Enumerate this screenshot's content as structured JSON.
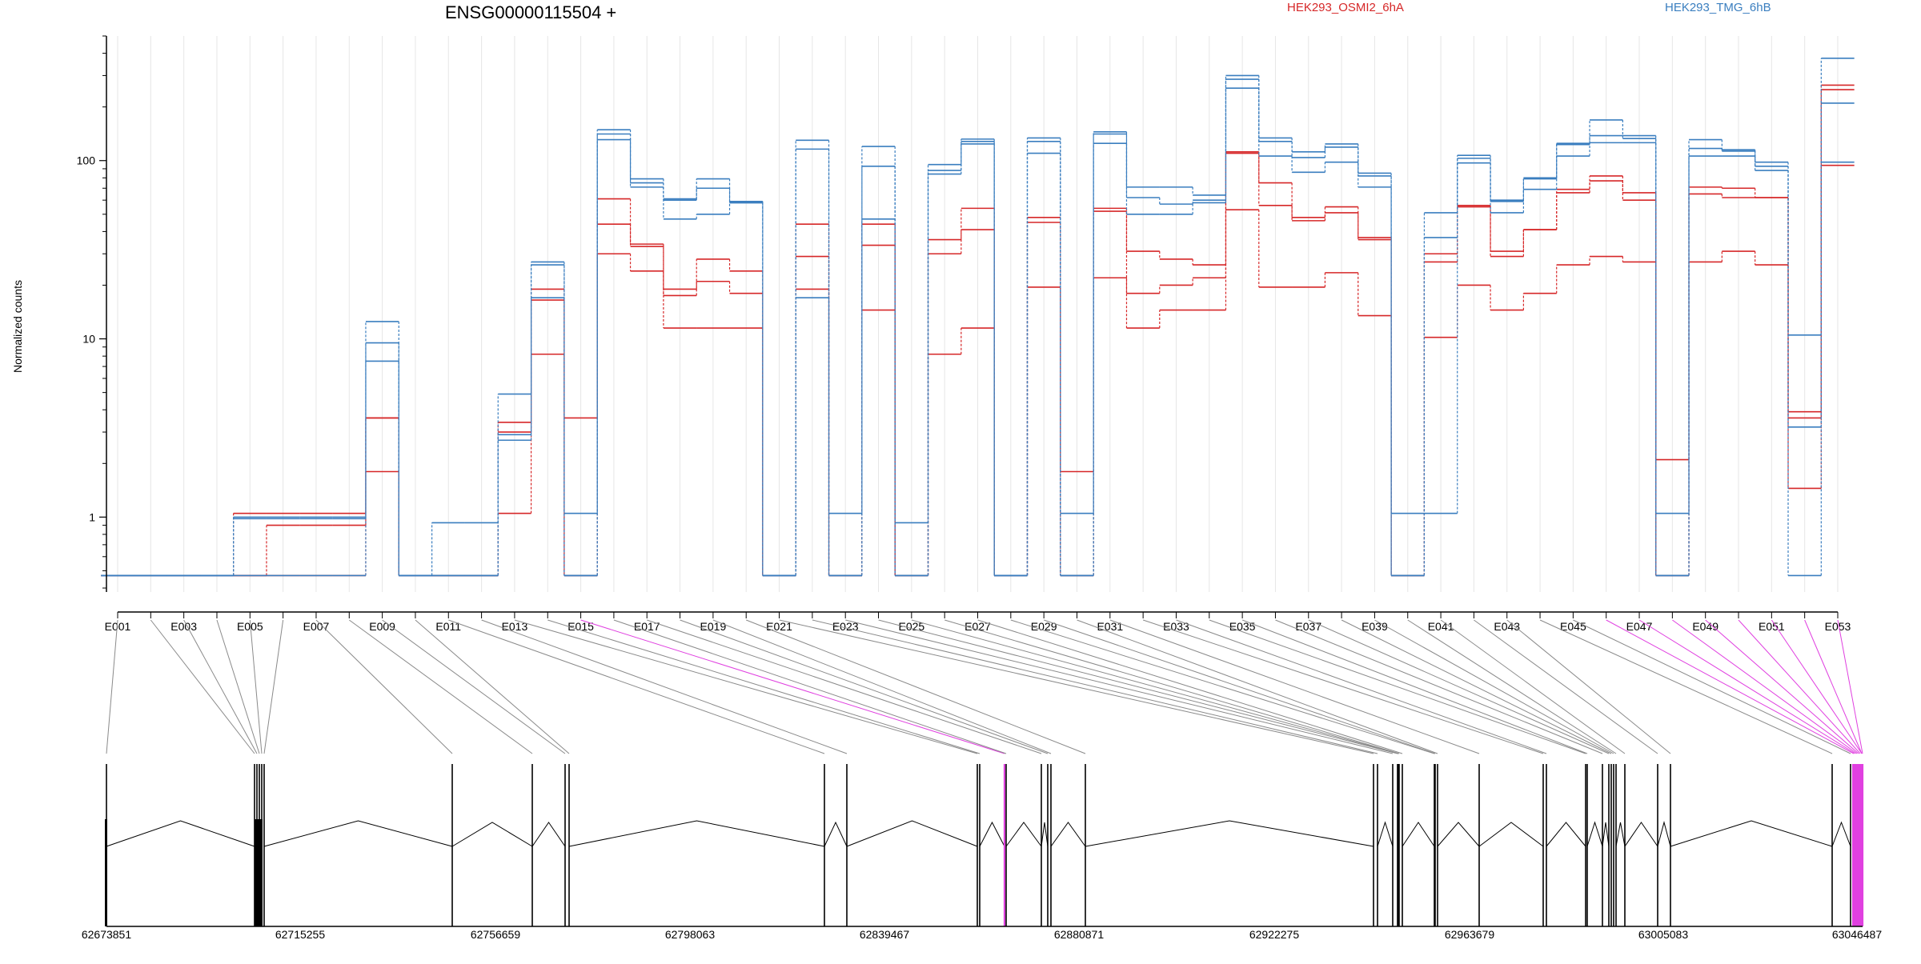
{
  "chart_data": {
    "type": "line",
    "title": "ENSG00000115504 +",
    "ylabel": "Normalized counts",
    "yscale": "log",
    "ylim": [
      0.38,
      500
    ],
    "yticks": [
      1,
      10,
      100
    ],
    "ytick_labels": [
      "1",
      "10",
      "100"
    ],
    "grid": "vertical",
    "legend_placement": "top-right",
    "legend": [
      {
        "label": "HEK293_OSMI2_6hA",
        "color": "#d62728"
      },
      {
        "label": "HEK293_TMG_6hB",
        "color": "#3a7ebf"
      }
    ],
    "x_labels_shown": [
      "E001",
      "E003",
      "E005",
      "E007",
      "E009",
      "E011",
      "E013",
      "E015",
      "E017",
      "E019",
      "E021",
      "E023",
      "E025",
      "E027",
      "E029",
      "E031",
      "E033",
      "E035",
      "E037",
      "E039",
      "E041",
      "E043",
      "E045",
      "E047",
      "E049",
      "E051",
      "E053"
    ],
    "exon_count": 53,
    "series": [
      {
        "group": "HEK293_OSMI2_6hA",
        "color": "#d62728",
        "values": [
          0.47,
          0.47,
          0.47,
          0.47,
          0.47,
          0.47,
          0.47,
          0.47,
          1.8,
          0.47,
          0.47,
          0.47,
          1.05,
          8.2,
          3.6,
          30,
          24,
          11.5,
          11.5,
          11.5,
          0.47,
          19,
          0.47,
          14.5,
          0.47,
          8.2,
          11.5,
          0.47,
          19.5,
          1.8,
          22,
          11.5,
          14.5,
          14.5,
          53,
          19.5,
          19.5,
          23.5,
          13.5,
          0.47,
          10.2,
          20,
          14.5,
          18,
          26,
          29,
          27,
          0.47,
          27,
          31,
          26,
          1.45,
          94
        ]
      },
      {
        "group": "HEK293_OSMI2_6hA",
        "color": "#d62728",
        "values": [
          0.47,
          0.47,
          0.47,
          0.47,
          0.47,
          0.9,
          0.9,
          0.9,
          3.6,
          0.47,
          0.47,
          0.47,
          3.0,
          16.5,
          0.47,
          44,
          34,
          17.5,
          21,
          18,
          0.47,
          29,
          0.47,
          33.5,
          0.47,
          30,
          41,
          0.47,
          45,
          0.47,
          52,
          18,
          20,
          22,
          110,
          56,
          46,
          51,
          36,
          0.47,
          27,
          55,
          31,
          41,
          66,
          77,
          60,
          2.1,
          65,
          62,
          62,
          3.6,
          250
        ]
      },
      {
        "group": "HEK293_OSMI2_6hA",
        "color": "#d62728",
        "values": [
          0.47,
          0.47,
          0.47,
          0.47,
          1.05,
          1.05,
          1.05,
          1.05,
          3.6,
          0.47,
          0.47,
          0.47,
          3.4,
          19,
          0.47,
          61,
          33,
          19,
          28,
          24,
          0.47,
          44,
          0.47,
          44,
          0.47,
          36,
          54,
          0.47,
          48,
          0.47,
          54,
          31,
          28,
          26,
          112,
          75,
          48,
          55,
          37,
          0.47,
          30,
          56,
          29,
          41,
          69,
          82,
          66,
          0.47,
          71,
          70,
          62,
          3.9,
          265
        ]
      },
      {
        "group": "HEK293_TMG_6hB",
        "color": "#3a7ebf",
        "values": [
          0.47,
          0.47,
          0.47,
          0.47,
          0.47,
          0.47,
          0.47,
          0.47,
          7.5,
          0.47,
          0.47,
          0.47,
          2.7,
          17,
          0.47,
          131,
          71,
          47,
          50,
          58,
          0.47,
          17,
          0.47,
          47,
          0.47,
          84,
          124,
          0.47,
          110,
          0.47,
          125,
          50,
          50,
          58,
          255,
          106,
          86,
          98,
          71,
          0.47,
          37,
          97,
          51,
          69,
          106,
          126,
          126,
          1.05,
          106,
          106,
          88,
          0.47,
          210
        ]
      },
      {
        "group": "HEK293_TMG_6hB",
        "color": "#3a7ebf",
        "values": [
          0.47,
          0.47,
          0.47,
          0.47,
          0.98,
          0.98,
          0.98,
          0.98,
          9.5,
          0.47,
          0.93,
          0.93,
          4.9,
          26,
          1.05,
          141,
          75,
          61,
          70,
          58,
          0.47,
          116,
          1.05,
          93,
          0.93,
          88,
          128,
          0.47,
          128,
          1.05,
          141,
          62,
          57,
          60,
          286,
          128,
          104,
          119,
          82,
          1.05,
          1.05,
          103,
          60,
          79,
          123,
          138,
          133,
          0.47,
          117,
          113,
          93,
          3.2,
          98
        ]
      },
      {
        "group": "HEK293_TMG_6hB",
        "color": "#3a7ebf",
        "values": [
          0.47,
          0.47,
          0.47,
          0.47,
          1.0,
          1.0,
          1.0,
          1.0,
          12.5,
          0.47,
          0.47,
          0.47,
          2.9,
          27,
          0.47,
          149,
          79,
          60,
          79,
          59,
          0.47,
          130,
          0.47,
          120,
          0.47,
          95,
          132,
          0.47,
          134,
          0.47,
          145,
          71,
          71,
          64,
          300,
          134,
          112,
          124,
          85,
          0.47,
          51,
          107,
          59,
          80,
          125,
          169,
          138,
          0.47,
          131,
          115,
          98,
          10.5,
          375
        ]
      }
    ]
  },
  "gene_model": {
    "coordinate_labels": [
      "62673851",
      "62715255",
      "62756659",
      "62798063",
      "62839467",
      "62880871",
      "62922275",
      "62963679",
      "63005083",
      "63046487"
    ]
  }
}
